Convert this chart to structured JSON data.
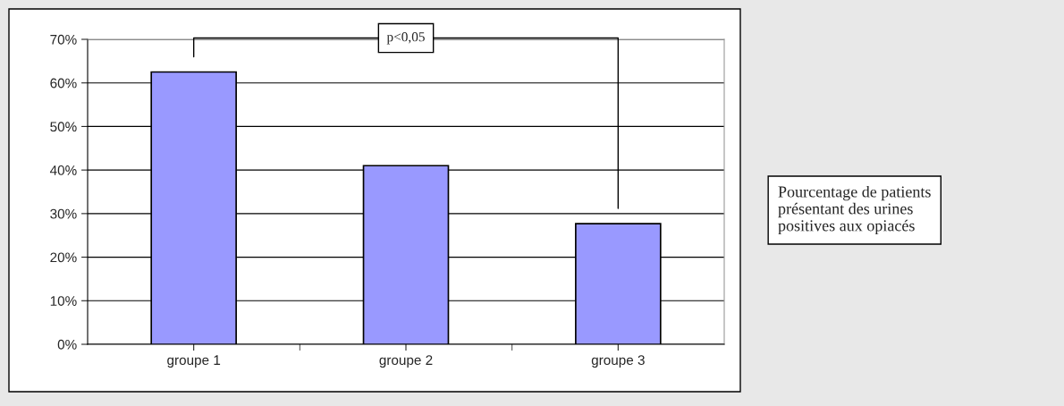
{
  "chart_data": {
    "type": "bar",
    "categories": [
      "groupe 1",
      "groupe 2",
      "groupe 3"
    ],
    "values": [
      62.5,
      41,
      27.7
    ],
    "color": "#9999ff",
    "ylim": [
      0,
      70
    ],
    "yticks": [
      {
        "value": 0,
        "label": "0%"
      },
      {
        "value": 10,
        "label": "10%"
      },
      {
        "value": 20,
        "label": "20%"
      },
      {
        "value": 30,
        "label": "30%"
      },
      {
        "value": 40,
        "label": "40%"
      },
      {
        "value": 50,
        "label": "50%"
      },
      {
        "value": 60,
        "label": "60%"
      },
      {
        "value": 70,
        "label": "70%"
      }
    ],
    "grid": "y",
    "annotations": [
      "p<0,05",
      "Pourcentage de patients\nprésentant des urines\npositives aux opiacés"
    ]
  }
}
